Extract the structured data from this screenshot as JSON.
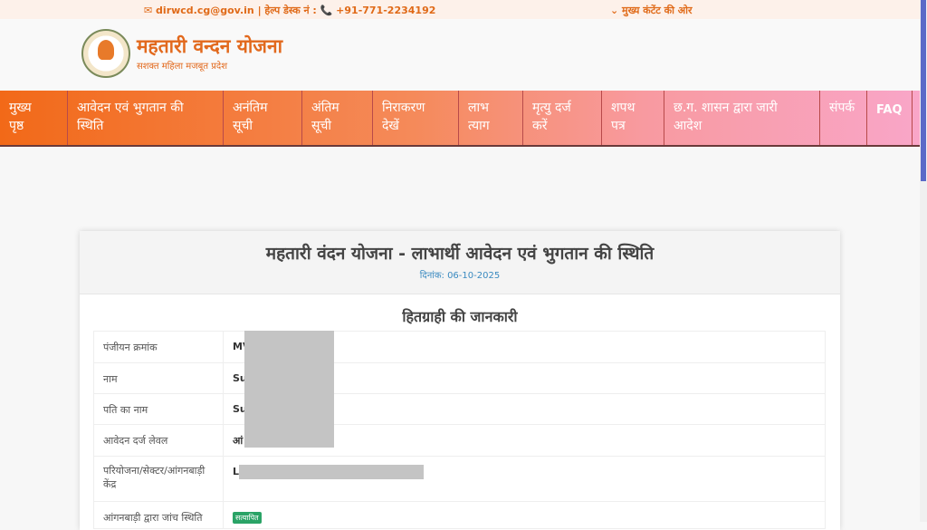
{
  "topbar": {
    "email": "✉ dirwcd.cg@gov.in",
    "helpdesk": " | हेल्प डेस्क नं : ",
    "phone": "📞 +91-771-2234192",
    "skip": "⌄ मुख्य कंटेंट की ओर"
  },
  "header": {
    "title": "महतारी वन्दन योजना",
    "subtitle": "सशक्त महिला मजबूत प्रदेश"
  },
  "nav": [
    {
      "l1": "मुख्य",
      "l2": "पृष्ठ"
    },
    {
      "l1": "आवेदन एवं भुगतान की",
      "l2": "स्थिति"
    },
    {
      "l1": "अनंतिम",
      "l2": "सूची"
    },
    {
      "l1": "अंतिम",
      "l2": "सूची"
    },
    {
      "l1": "निराकरण",
      "l2": "देखें"
    },
    {
      "l1": "लाभ",
      "l2": "त्याग"
    },
    {
      "l1": "मृत्यु दर्ज",
      "l2": "करें"
    },
    {
      "l1": "शपथ",
      "l2": "पत्र"
    },
    {
      "l1": "छ.ग. शासन द्वारा जारी",
      "l2": "आदेश"
    },
    {
      "l1": "संपर्क",
      "l2": ""
    },
    {
      "l1": "FAQ",
      "l2": ""
    }
  ],
  "card": {
    "title": "महतारी वंदन योजना - लाभार्थी आवेदन एवं भुगतान की स्थिति",
    "date": "दिनांक: 06-10-2025",
    "section": "हितग्राही की जानकारी"
  },
  "rows": [
    {
      "label": "पंजीयन क्रमांक",
      "value": "MV"
    },
    {
      "label": "नाम",
      "value": "Su"
    },
    {
      "label": "पति का नाम",
      "value": "Su"
    },
    {
      "label": "आवेदन दर्ज लेवल",
      "value": "आं"
    },
    {
      "label": "परियोजना/सेक्टर/आंगनबाड़ी केंद्र",
      "value": "Lo"
    },
    {
      "label": "आंगनबाड़ी द्वारा जांच स्थिति",
      "badge": "सत्यापित"
    }
  ],
  "colors": {
    "nav_start": "#f26918",
    "nav_end": "#f9a6c8",
    "brand": "#e2691d",
    "badge": "#2aa366"
  }
}
